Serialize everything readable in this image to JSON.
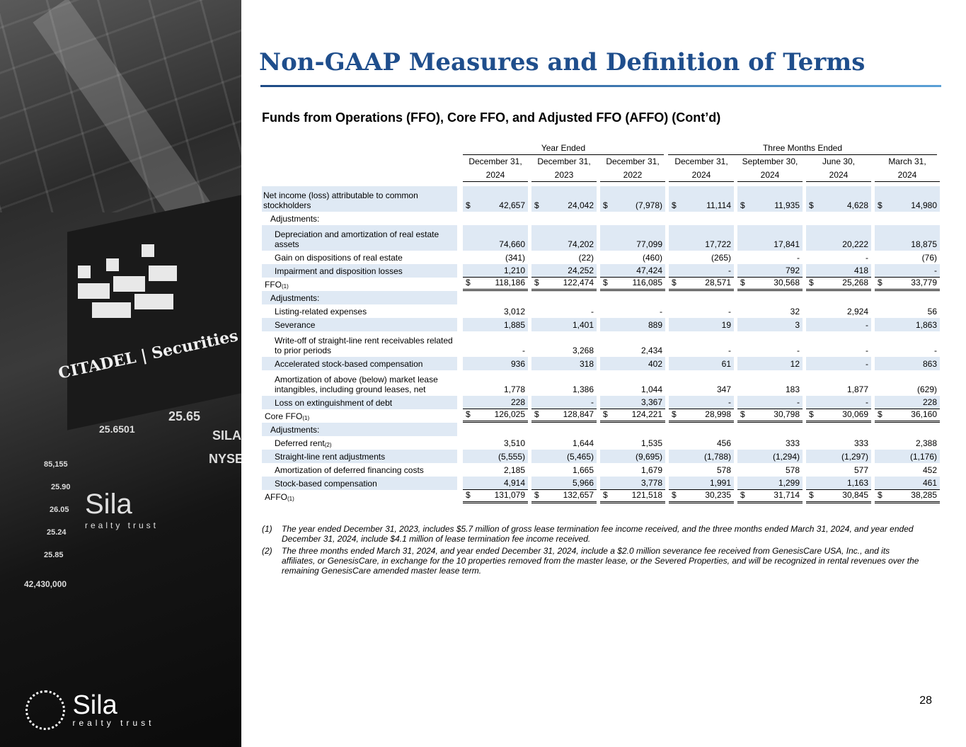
{
  "title": "Non-GAAP Measures and Definition of Terms",
  "subtitle": "Funds from Operations (FFO), Core FFO, and Adjusted FFO (AFFO) (Cont’d)",
  "page_number": "28",
  "photo": {
    "sign_text": "CITADEL | Securities",
    "ticker_1": "25.6501",
    "ticker_2": "25.65",
    "ticker_3": "SILA",
    "ticker_4": "NYSE",
    "ticker_5": "85,155",
    "ticker_6": "25.90",
    "ticker_7": "26.05",
    "ticker_8": "25.24",
    "ticker_9": "25.85",
    "ticker_10": "42,430,000",
    "sign_logo": "Sila",
    "sign_logo_sub": "realty trust",
    "logo_word": "Sila",
    "logo_sub": "realty trust"
  },
  "table": {
    "group_year": "Year Ended",
    "group_three": "Three Months Ended",
    "col_month": [
      "December 31,",
      "December 31,",
      "December 31,",
      "December 31,",
      "September 30,",
      "June 30,",
      "March 31,"
    ],
    "col_year": [
      "2024",
      "2023",
      "2022",
      "2024",
      "2024",
      "2024",
      "2024"
    ],
    "rows": {
      "net_income": {
        "label": "Net income (loss) attributable to common stockholders",
        "values": [
          "42,657",
          "24,042",
          "(7,978)",
          "11,114",
          "11,935",
          "4,628",
          "14,980"
        ]
      },
      "adj1": {
        "label": "Adjustments:"
      },
      "depr": {
        "label": "Depreciation and amortization of  real estate assets",
        "values": [
          "74,660",
          "74,202",
          "77,099",
          "17,722",
          "17,841",
          "20,222",
          "18,875"
        ]
      },
      "gain": {
        "label": "Gain on dispositions of real estate",
        "values": [
          "(341)",
          "(22)",
          "(460)",
          "(265)",
          "-",
          "-",
          "(76)"
        ]
      },
      "impair": {
        "label": "Impairment and disposition losses",
        "values": [
          "1,210",
          "24,252",
          "47,424",
          "-",
          "792",
          "418",
          "-"
        ]
      },
      "ffo": {
        "label": "FFO",
        "sup": "(1)",
        "values": [
          "118,186",
          "122,474",
          "116,085",
          "28,571",
          "30,568",
          "25,268",
          "33,779"
        ]
      },
      "adj2": {
        "label": "Adjustments:"
      },
      "listing": {
        "label": "Listing-related expenses",
        "values": [
          "3,012",
          "-",
          "-",
          "-",
          "32",
          "2,924",
          "56"
        ]
      },
      "sever": {
        "label": "Severance",
        "values": [
          "1,885",
          "1,401",
          "889",
          "19",
          "3",
          "-",
          "1,863"
        ]
      },
      "writeoff": {
        "label": "Write-off of straight-line rent receivables related to prior periods",
        "values": [
          "-",
          "3,268",
          "2,434",
          "-",
          "-",
          "-",
          "-"
        ]
      },
      "accel": {
        "label": "Accelerated stock-based compensation",
        "values": [
          "936",
          "318",
          "402",
          "61",
          "12",
          "-",
          "863"
        ]
      },
      "amort_mkt": {
        "label": "Amortization of above (below) market lease intangibles, including  ground leases, net",
        "values": [
          "1,778",
          "1,386",
          "1,044",
          "347",
          "183",
          "1,877",
          "(629)"
        ]
      },
      "loss_debt": {
        "label": "Loss on extinguishment of debt",
        "values": [
          "228",
          "-",
          "3,367",
          "-",
          "-",
          "-",
          "228"
        ]
      },
      "core": {
        "label": "Core FFO",
        "sup": "(1)",
        "values": [
          "126,025",
          "128,847",
          "124,221",
          "28,998",
          "30,798",
          "30,069",
          "36,160"
        ]
      },
      "adj3": {
        "label": "Adjustments:"
      },
      "deferred": {
        "label": "Deferred rent",
        "sup": "(2)",
        "values": [
          "3,510",
          "1,644",
          "1,535",
          "456",
          "333",
          "333",
          "2,388"
        ]
      },
      "straight": {
        "label": "Straight-line rent adjustments",
        "values": [
          "(5,555)",
          "(5,465)",
          "(9,695)",
          "(1,788)",
          "(1,294)",
          "(1,297)",
          "(1,176)"
        ]
      },
      "amort_fin": {
        "label": "Amortization of deferred financing costs",
        "values": [
          "2,185",
          "1,665",
          "1,679",
          "578",
          "578",
          "577",
          "452"
        ]
      },
      "stock": {
        "label": "Stock-based compensation",
        "values": [
          "4,914",
          "5,966",
          "3,778",
          "1,991",
          "1,299",
          "1,163",
          "461"
        ]
      },
      "affo": {
        "label": "AFFO",
        "sup": "(1)",
        "values": [
          "131,079",
          "132,657",
          "121,518",
          "30,235",
          "31,714",
          "30,845",
          "38,285"
        ]
      }
    },
    "dollar": "$"
  },
  "footnotes": [
    {
      "num": "(1)",
      "text": "The year ended December 31, 2023, includes $5.7 million of gross lease termination fee income received, and the three months ended March 31, 2024, and year ended December 31, 2024, include $4.1 million of lease termination fee income received."
    },
    {
      "num": "(2)",
      "text": "The three months ended March 31, 2024, and year ended December 31, 2024, include a $2.0 million severance fee received from GenesisCare USA, Inc., and its affiliates, or GenesisCare, in exchange for the 10 properties removed from the master lease, or the Severed Properties, and will be recognized in rental revenues over the remaining GenesisCare amended master lease term."
    }
  ]
}
